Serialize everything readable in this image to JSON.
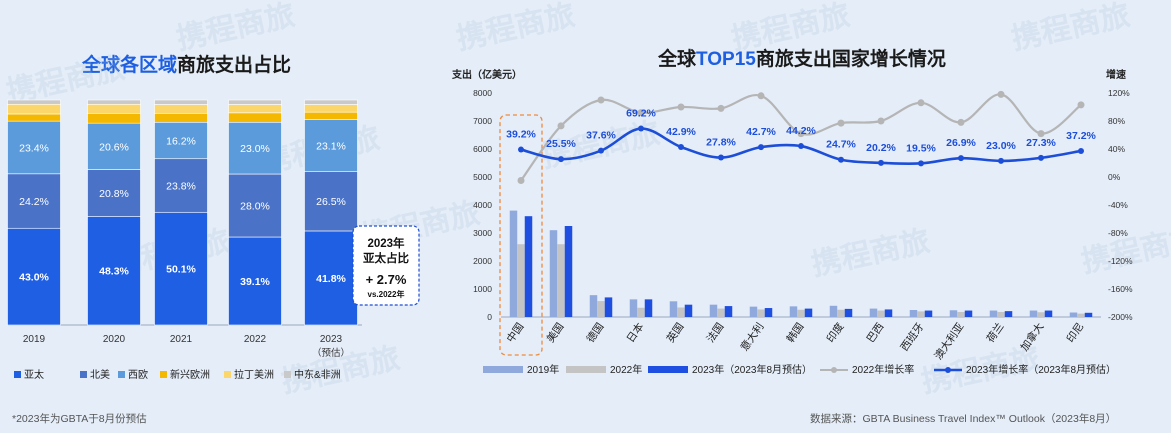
{
  "titles": {
    "left_prefix": "全球各区域",
    "left_suffix": "商旅支出占比",
    "right_prefix": "全球",
    "right_hl": "TOP15",
    "right_suffix": "商旅支出国家增长情况"
  },
  "watermark": "携程商旅",
  "footnote": "*2023年为GBTA于8月份预估",
  "source": "数据来源：GBTA Business Travel Index™ Outlook（2023年8月）",
  "colors": {
    "asia_pacific": "#1f5fe3",
    "north_america": "#4a73c8",
    "europe": "#5b9bdb",
    "emerging_europe": "#f5b800",
    "latin_america": "#fbd66b",
    "mideast_africa": "#c9c9c9",
    "bar_2019": "#8fa9dc",
    "bar_2022": "#c4c4c4",
    "bar_2023": "#1f4fe0",
    "line_2022": "#b5b5b5",
    "line_2023": "#1d4ed8",
    "callout_border": "#1d4ed8",
    "highlight_border": "#f08a3c"
  },
  "chart_data": [
    {
      "type": "bar",
      "stacked": true,
      "title": "全球各区域商旅支出占比",
      "categories": [
        "2019",
        "2020",
        "2021",
        "2022",
        "2023"
      ],
      "category_notes": [
        "",
        "",
        "",
        "",
        "（预估）"
      ],
      "series": [
        {
          "name": "亚太",
          "values": [
            43.0,
            48.3,
            50.1,
            39.1,
            41.8
          ],
          "labels": [
            "43.0%",
            "48.3%",
            "50.1%",
            "39.1%",
            "41.8%"
          ]
        },
        {
          "name": "北美",
          "values": [
            24.2,
            20.8,
            23.8,
            28.0,
            26.5
          ],
          "labels": [
            "24.2%",
            "20.8%",
            "23.8%",
            "28.0%",
            "26.5%"
          ]
        },
        {
          "name": "西欧",
          "values": [
            23.4,
            20.6,
            16.2,
            23.0,
            23.1
          ],
          "labels": [
            "23.4%",
            "20.6%",
            "16.2%",
            "23.0%",
            "23.1%"
          ]
        },
        {
          "name": "新兴欧洲",
          "values": [
            3.2,
            4.4,
            4.0,
            4.2,
            3.2
          ],
          "labels": [
            "",
            "",
            "",
            "",
            ""
          ]
        },
        {
          "name": "拉丁美洲",
          "values": [
            4.3,
            4.0,
            3.9,
            3.7,
            3.4
          ],
          "labels": [
            "",
            "",
            "",
            "",
            ""
          ]
        },
        {
          "name": "中东&非洲",
          "values": [
            1.9,
            1.9,
            2.0,
            2.0,
            2.0
          ],
          "labels": [
            "",
            "",
            "",
            "",
            ""
          ]
        }
      ],
      "ylim": [
        0,
        100
      ],
      "legend": "bottom",
      "callout": {
        "line1": "2023年",
        "line2": "亚太占比",
        "line3": "+ 2.7%",
        "line4": "vs.2022年"
      }
    },
    {
      "type": "bar+line",
      "title": "全球TOP15商旅支出国家增长情况",
      "categories": [
        "中国",
        "美国",
        "德国",
        "日本",
        "英国",
        "法国",
        "意大利",
        "韩国",
        "印度",
        "巴西",
        "西班牙",
        "澳大利亚",
        "荷兰",
        "加拿大",
        "印尼"
      ],
      "ylabel_left": "支出（亿美元）",
      "ylabel_right": "增速",
      "ylim_left": [
        0,
        8000
      ],
      "yticks_left": [
        "0",
        "1000",
        "2000",
        "3000",
        "4000",
        "5000",
        "6000",
        "7000",
        "8000"
      ],
      "ylim_right": [
        -200,
        120
      ],
      "yticks_right": [
        "-200%",
        "-160%",
        "-120%",
        "-80%",
        "-40%",
        "0%",
        "40%",
        "80%",
        "120%"
      ],
      "bar_series": [
        {
          "name": "2019年",
          "values": [
            3800,
            3100,
            780,
            630,
            560,
            440,
            370,
            380,
            400,
            300,
            250,
            240,
            230,
            230,
            160
          ]
        },
        {
          "name": "2022年",
          "values": [
            2600,
            2600,
            570,
            330,
            340,
            300,
            270,
            260,
            260,
            230,
            200,
            180,
            180,
            170,
            120
          ]
        },
        {
          "name": "2023年（2023年8月预估）",
          "values": [
            3600,
            3250,
            700,
            630,
            440,
            390,
            320,
            300,
            290,
            270,
            230,
            230,
            210,
            230,
            150
          ]
        }
      ],
      "line_series": [
        {
          "name": "2022年增长率",
          "values": [
            -5,
            73,
            110,
            92,
            100,
            98,
            116,
            62,
            77,
            80,
            106,
            78,
            118,
            62,
            103
          ]
        },
        {
          "name": "2023年增长率（2023年8月预估）",
          "values": [
            39.2,
            25.5,
            37.6,
            69.2,
            42.9,
            27.8,
            42.7,
            44.2,
            24.7,
            20.2,
            19.5,
            26.9,
            23.0,
            27.3,
            37.2
          ],
          "labels": [
            "39.2%",
            "25.5%",
            "37.6%",
            "69.2%",
            "42.9%",
            "27.8%",
            "42.7%",
            "44.2%",
            "24.7%",
            "20.2%",
            "19.5%",
            "26.9%",
            "23.0%",
            "27.3%",
            "37.2%"
          ]
        }
      ],
      "legend": "bottom",
      "highlight_category": "中国"
    }
  ]
}
